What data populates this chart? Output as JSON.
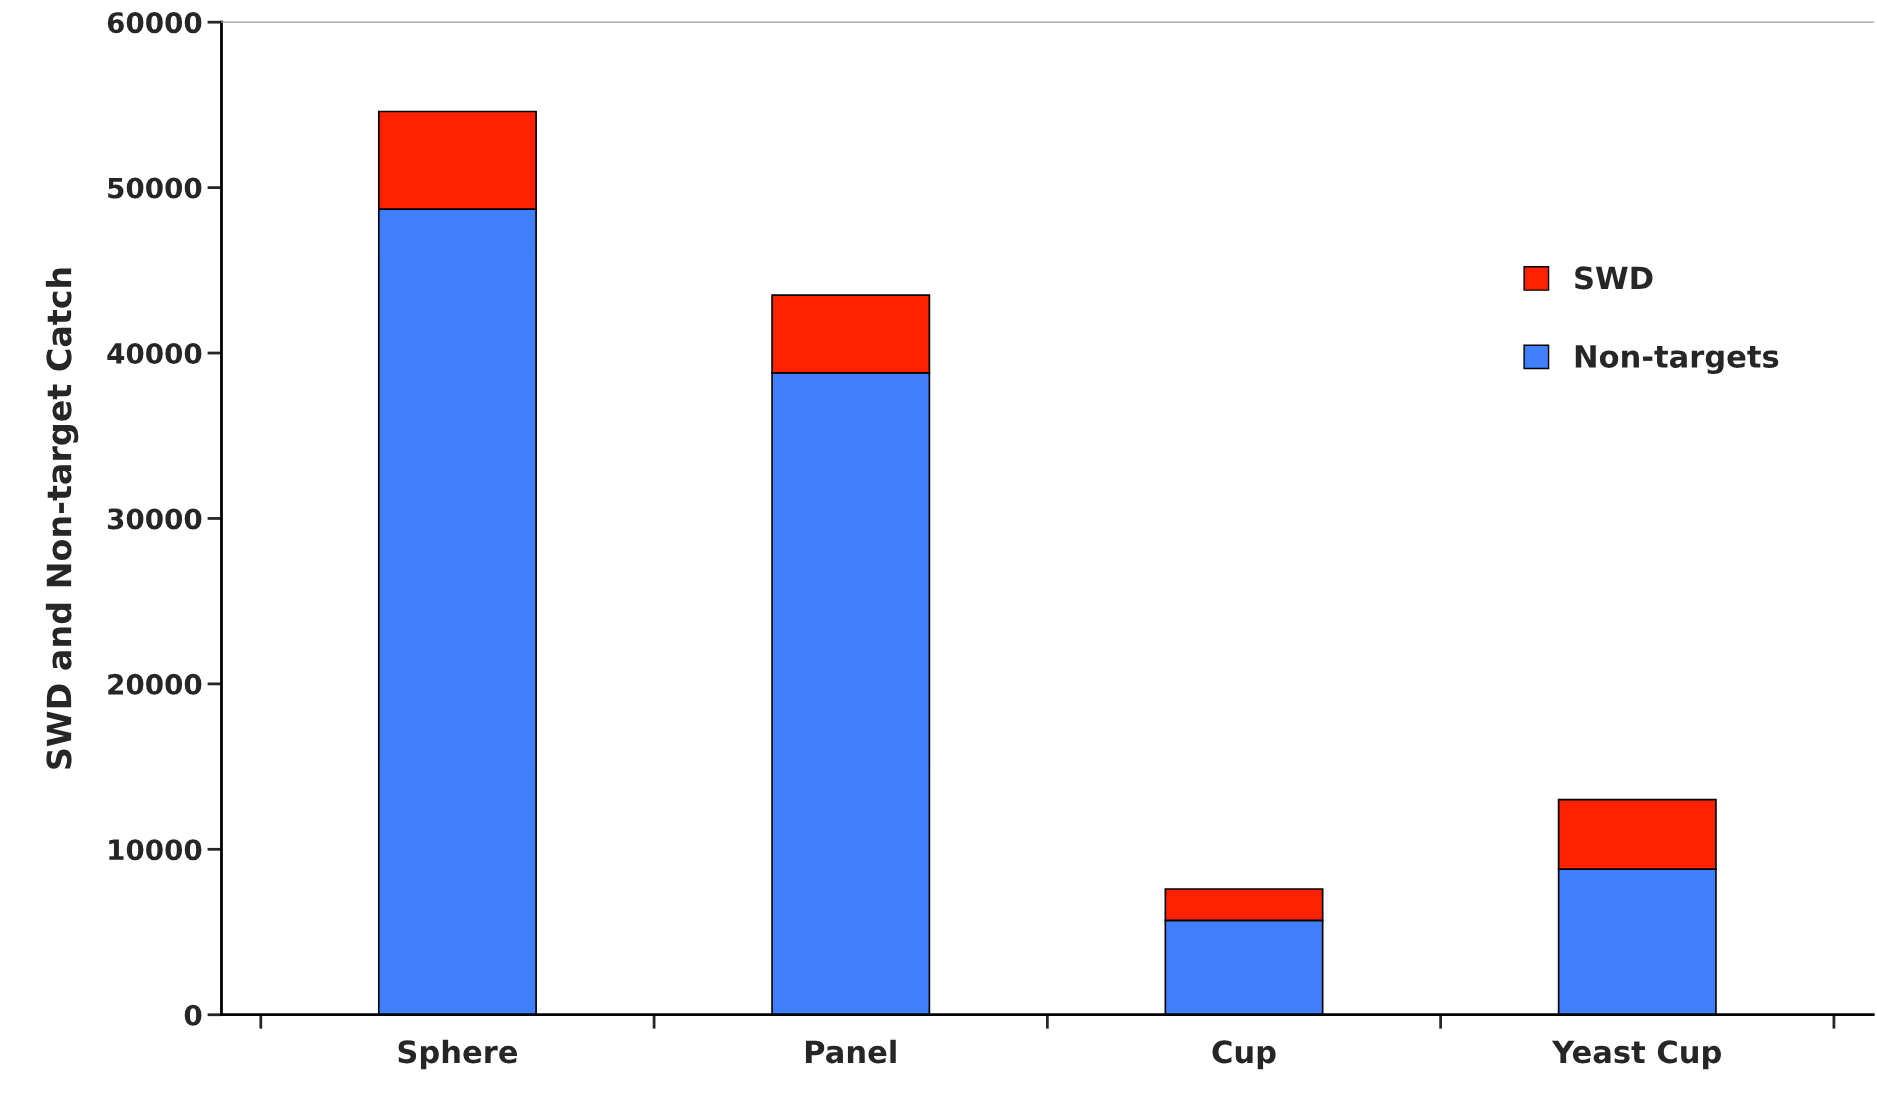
{
  "chart_data": {
    "type": "bar",
    "stacked": true,
    "ylabel": "SWD and Non-target Catch",
    "categories": [
      "Sphere",
      "Panel",
      "Cup",
      "Yeast Cup"
    ],
    "series": [
      {
        "name": "Non-targets",
        "color": "#4080ff",
        "values": [
          48700,
          38800,
          5700,
          8800
        ]
      },
      {
        "name": "SWD",
        "color": "#ff2200",
        "values": [
          5900,
          4700,
          1900,
          4200
        ]
      }
    ],
    "ylim": [
      0,
      60000
    ],
    "yticks": [
      0,
      10000,
      20000,
      30000,
      40000,
      50000,
      60000
    ],
    "grid": false,
    "legend": "right"
  }
}
